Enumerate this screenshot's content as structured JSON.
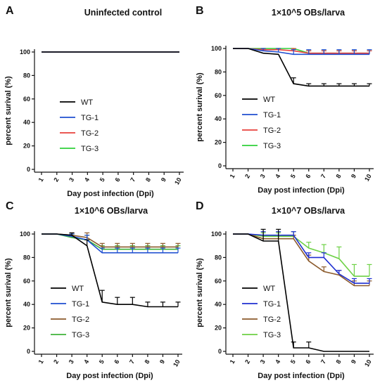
{
  "chart_data": [
    {
      "panel": "A",
      "type": "line",
      "title": "Uninfected control",
      "xlabel": "Day post  infection (Dpi)",
      "ylabel": "percent surival (%)",
      "x": [
        1,
        2,
        3,
        4,
        5,
        6,
        7,
        8,
        9,
        10
      ],
      "ylim": [
        0,
        100
      ],
      "yticks": [
        0,
        20,
        40,
        60,
        80,
        100
      ],
      "series": [
        {
          "name": "WT",
          "color": "#000000",
          "values": [
            100,
            100,
            100,
            100,
            100,
            100,
            100,
            100,
            100,
            100
          ],
          "errors": [
            0,
            0,
            0,
            0,
            0,
            0,
            0,
            0,
            0,
            0
          ]
        },
        {
          "name": "TG-1",
          "color": "#1f4fd1",
          "values": [
            100,
            100,
            100,
            100,
            100,
            100,
            100,
            100,
            100,
            100
          ],
          "errors": [
            0,
            0,
            0,
            0,
            0,
            0,
            0,
            0,
            0,
            0
          ]
        },
        {
          "name": "TG-2",
          "color": "#e8413c",
          "values": [
            100,
            100,
            100,
            100,
            100,
            100,
            100,
            100,
            100,
            100
          ],
          "errors": [
            0,
            0,
            0,
            0,
            0,
            0,
            0,
            0,
            0,
            0
          ]
        },
        {
          "name": "TG-3",
          "color": "#2fd13a",
          "values": [
            100,
            100,
            100,
            100,
            100,
            100,
            100,
            100,
            100,
            100
          ],
          "errors": [
            0,
            0,
            0,
            0,
            0,
            0,
            0,
            0,
            0,
            0
          ]
        }
      ]
    },
    {
      "panel": "B",
      "type": "line",
      "title": "1×10^5 OBs/larva",
      "xlabel": "Day post  infection (Dpi)",
      "ylabel": "percent surival (%)",
      "x": [
        1,
        2,
        3,
        4,
        5,
        6,
        7,
        8,
        9,
        10
      ],
      "ylim": [
        0,
        100
      ],
      "yticks": [
        0,
        20,
        40,
        60,
        80,
        100
      ],
      "series": [
        {
          "name": "WT",
          "color": "#000000",
          "values": [
            100,
            100,
            96,
            95,
            70,
            68,
            68,
            68,
            68,
            68
          ],
          "errors": [
            0,
            0,
            0,
            0,
            5,
            2,
            2,
            2,
            2,
            2
          ]
        },
        {
          "name": "TG-1",
          "color": "#1f4fd1",
          "values": [
            100,
            100,
            98,
            97,
            95,
            95,
            95,
            95,
            95,
            95
          ],
          "errors": [
            0,
            0,
            2,
            3,
            4,
            4,
            4,
            4,
            4,
            4
          ]
        },
        {
          "name": "TG-2",
          "color": "#e8413c",
          "values": [
            100,
            100,
            99,
            99,
            98,
            96,
            96,
            96,
            96,
            96
          ],
          "errors": [
            0,
            0,
            1,
            1,
            2,
            2,
            2,
            2,
            2,
            2
          ]
        },
        {
          "name": "TG-3",
          "color": "#2fd13a",
          "values": [
            100,
            100,
            100,
            100,
            100,
            96,
            96,
            96,
            96,
            96
          ],
          "errors": [
            0,
            0,
            0,
            0,
            0,
            2,
            2,
            2,
            2,
            2
          ]
        }
      ]
    },
    {
      "panel": "C",
      "type": "line",
      "title": "1×10^6 OBs/larva",
      "xlabel": "Day post  infection (Dpi)",
      "ylabel": "percent surival (%)",
      "x": [
        1,
        2,
        3,
        4,
        5,
        6,
        7,
        8,
        9,
        10
      ],
      "ylim": [
        0,
        100
      ],
      "yticks": [
        0,
        20,
        40,
        60,
        80,
        100
      ],
      "series": [
        {
          "name": "WT",
          "color": "#000000",
          "values": [
            100,
            100,
            99,
            90,
            42,
            40,
            40,
            38,
            38,
            38
          ],
          "errors": [
            0,
            0,
            2,
            5,
            10,
            6,
            6,
            4,
            4,
            4
          ]
        },
        {
          "name": "TG-1",
          "color": "#1f4fd1",
          "values": [
            100,
            100,
            98,
            95,
            84,
            84,
            84,
            84,
            84,
            84
          ],
          "errors": [
            0,
            0,
            2,
            4,
            4,
            4,
            4,
            4,
            4,
            4
          ]
        },
        {
          "name": "TG-2",
          "color": "#8b5a2b",
          "values": [
            100,
            100,
            99,
            97,
            89,
            89,
            89,
            89,
            89,
            89
          ],
          "errors": [
            0,
            0,
            2,
            4,
            3,
            3,
            3,
            3,
            3,
            3
          ]
        },
        {
          "name": "TG-3",
          "color": "#3fb23a",
          "values": [
            100,
            100,
            97,
            95,
            87,
            87,
            87,
            87,
            87,
            87
          ],
          "errors": [
            0,
            0,
            3,
            4,
            3,
            3,
            3,
            3,
            3,
            3
          ]
        }
      ]
    },
    {
      "panel": "D",
      "type": "line",
      "title": "1×10^7 OBs/larva",
      "xlabel": "Day post  infection (Dpi)",
      "ylabel": "percent surival (%)",
      "x": [
        1,
        2,
        3,
        4,
        5,
        6,
        7,
        8,
        9,
        10
      ],
      "ylim": [
        0,
        100
      ],
      "yticks": [
        0,
        20,
        40,
        60,
        80,
        100
      ],
      "series": [
        {
          "name": "WT",
          "color": "#000000",
          "values": [
            100,
            100,
            94,
            94,
            3,
            3,
            0,
            0,
            0,
            0
          ],
          "errors": [
            0,
            0,
            10,
            10,
            5,
            5,
            0,
            0,
            0,
            0
          ]
        },
        {
          "name": "TG-1",
          "color": "#1f2fd1",
          "values": [
            100,
            100,
            99,
            99,
            99,
            80,
            80,
            66,
            58,
            58
          ],
          "errors": [
            0,
            0,
            3,
            3,
            3,
            4,
            4,
            3,
            4,
            4
          ]
        },
        {
          "name": "TG-2",
          "color": "#8b5a2b",
          "values": [
            100,
            100,
            96,
            96,
            96,
            77,
            68,
            65,
            56,
            56
          ],
          "errors": [
            0,
            0,
            3,
            3,
            3,
            5,
            4,
            4,
            4,
            4
          ]
        },
        {
          "name": "TG-3",
          "color": "#6dd145",
          "values": [
            100,
            100,
            98,
            98,
            98,
            88,
            84,
            79,
            64,
            64
          ],
          "errors": [
            0,
            0,
            3,
            3,
            4,
            5,
            7,
            10,
            10,
            10
          ]
        }
      ]
    }
  ]
}
